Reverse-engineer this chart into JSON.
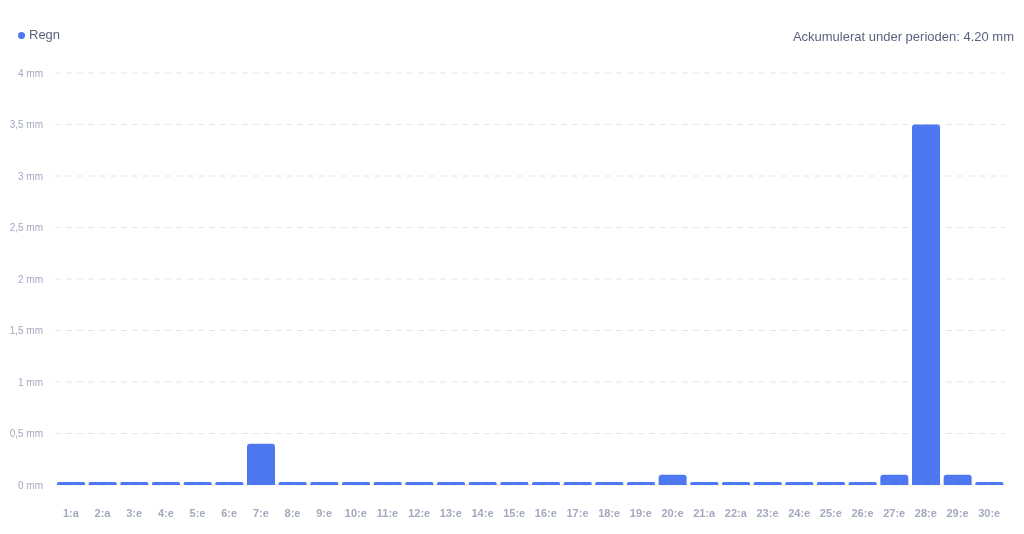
{
  "chart_data": {
    "type": "bar",
    "categories": [
      "1:a",
      "2:a",
      "3:e",
      "4:e",
      "5:e",
      "6:e",
      "7:e",
      "8:e",
      "9:e",
      "10:e",
      "11:e",
      "12:e",
      "13:e",
      "14:e",
      "15:e",
      "16:e",
      "17:e",
      "18:e",
      "19:e",
      "20:e",
      "21:a",
      "22:a",
      "23:e",
      "24:e",
      "25:e",
      "26:e",
      "27:e",
      "28:e",
      "29:e",
      "30:e"
    ],
    "series": [
      {
        "name": "Regn",
        "color": "#4e78f0",
        "values": [
          0,
          0,
          0,
          0,
          0,
          0,
          0.4,
          0,
          0,
          0,
          0,
          0,
          0,
          0,
          0,
          0,
          0,
          0,
          0,
          0.1,
          0,
          0,
          0,
          0,
          0,
          0,
          0.1,
          3.5,
          0.1,
          0
        ]
      }
    ],
    "ylim": [
      0,
      4
    ],
    "yticks": [
      {
        "value": 0,
        "label": "0 mm"
      },
      {
        "value": 0.5,
        "label": "0,5 mm"
      },
      {
        "value": 1,
        "label": "1 mm"
      },
      {
        "value": 1.5,
        "label": "1,5 mm"
      },
      {
        "value": 2,
        "label": "2 mm"
      },
      {
        "value": 2.5,
        "label": "2,5 mm"
      },
      {
        "value": 3,
        "label": "3 mm"
      },
      {
        "value": 3.5,
        "label": "3,5 mm"
      },
      {
        "value": 4,
        "label": "4 mm"
      }
    ],
    "grid": "y",
    "legend": "top left",
    "annotations": [
      "Ackumulerat under perioden: 4.20 mm"
    ]
  }
}
